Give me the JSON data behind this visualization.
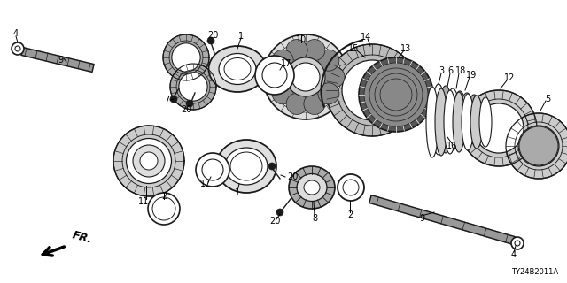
{
  "bg_color": "#ffffff",
  "diagram_code": "TY24B2011A",
  "line_color": "#1a1a1a",
  "part_color": "#1a1a1a",
  "gray_fill": "#666666",
  "light_gray": "#aaaaaa",
  "white": "#ffffff",
  "figsize": [
    6.4,
    3.2
  ],
  "dpi": 100,
  "xlim": [
    0,
    640
  ],
  "ylim": [
    0,
    320
  ]
}
